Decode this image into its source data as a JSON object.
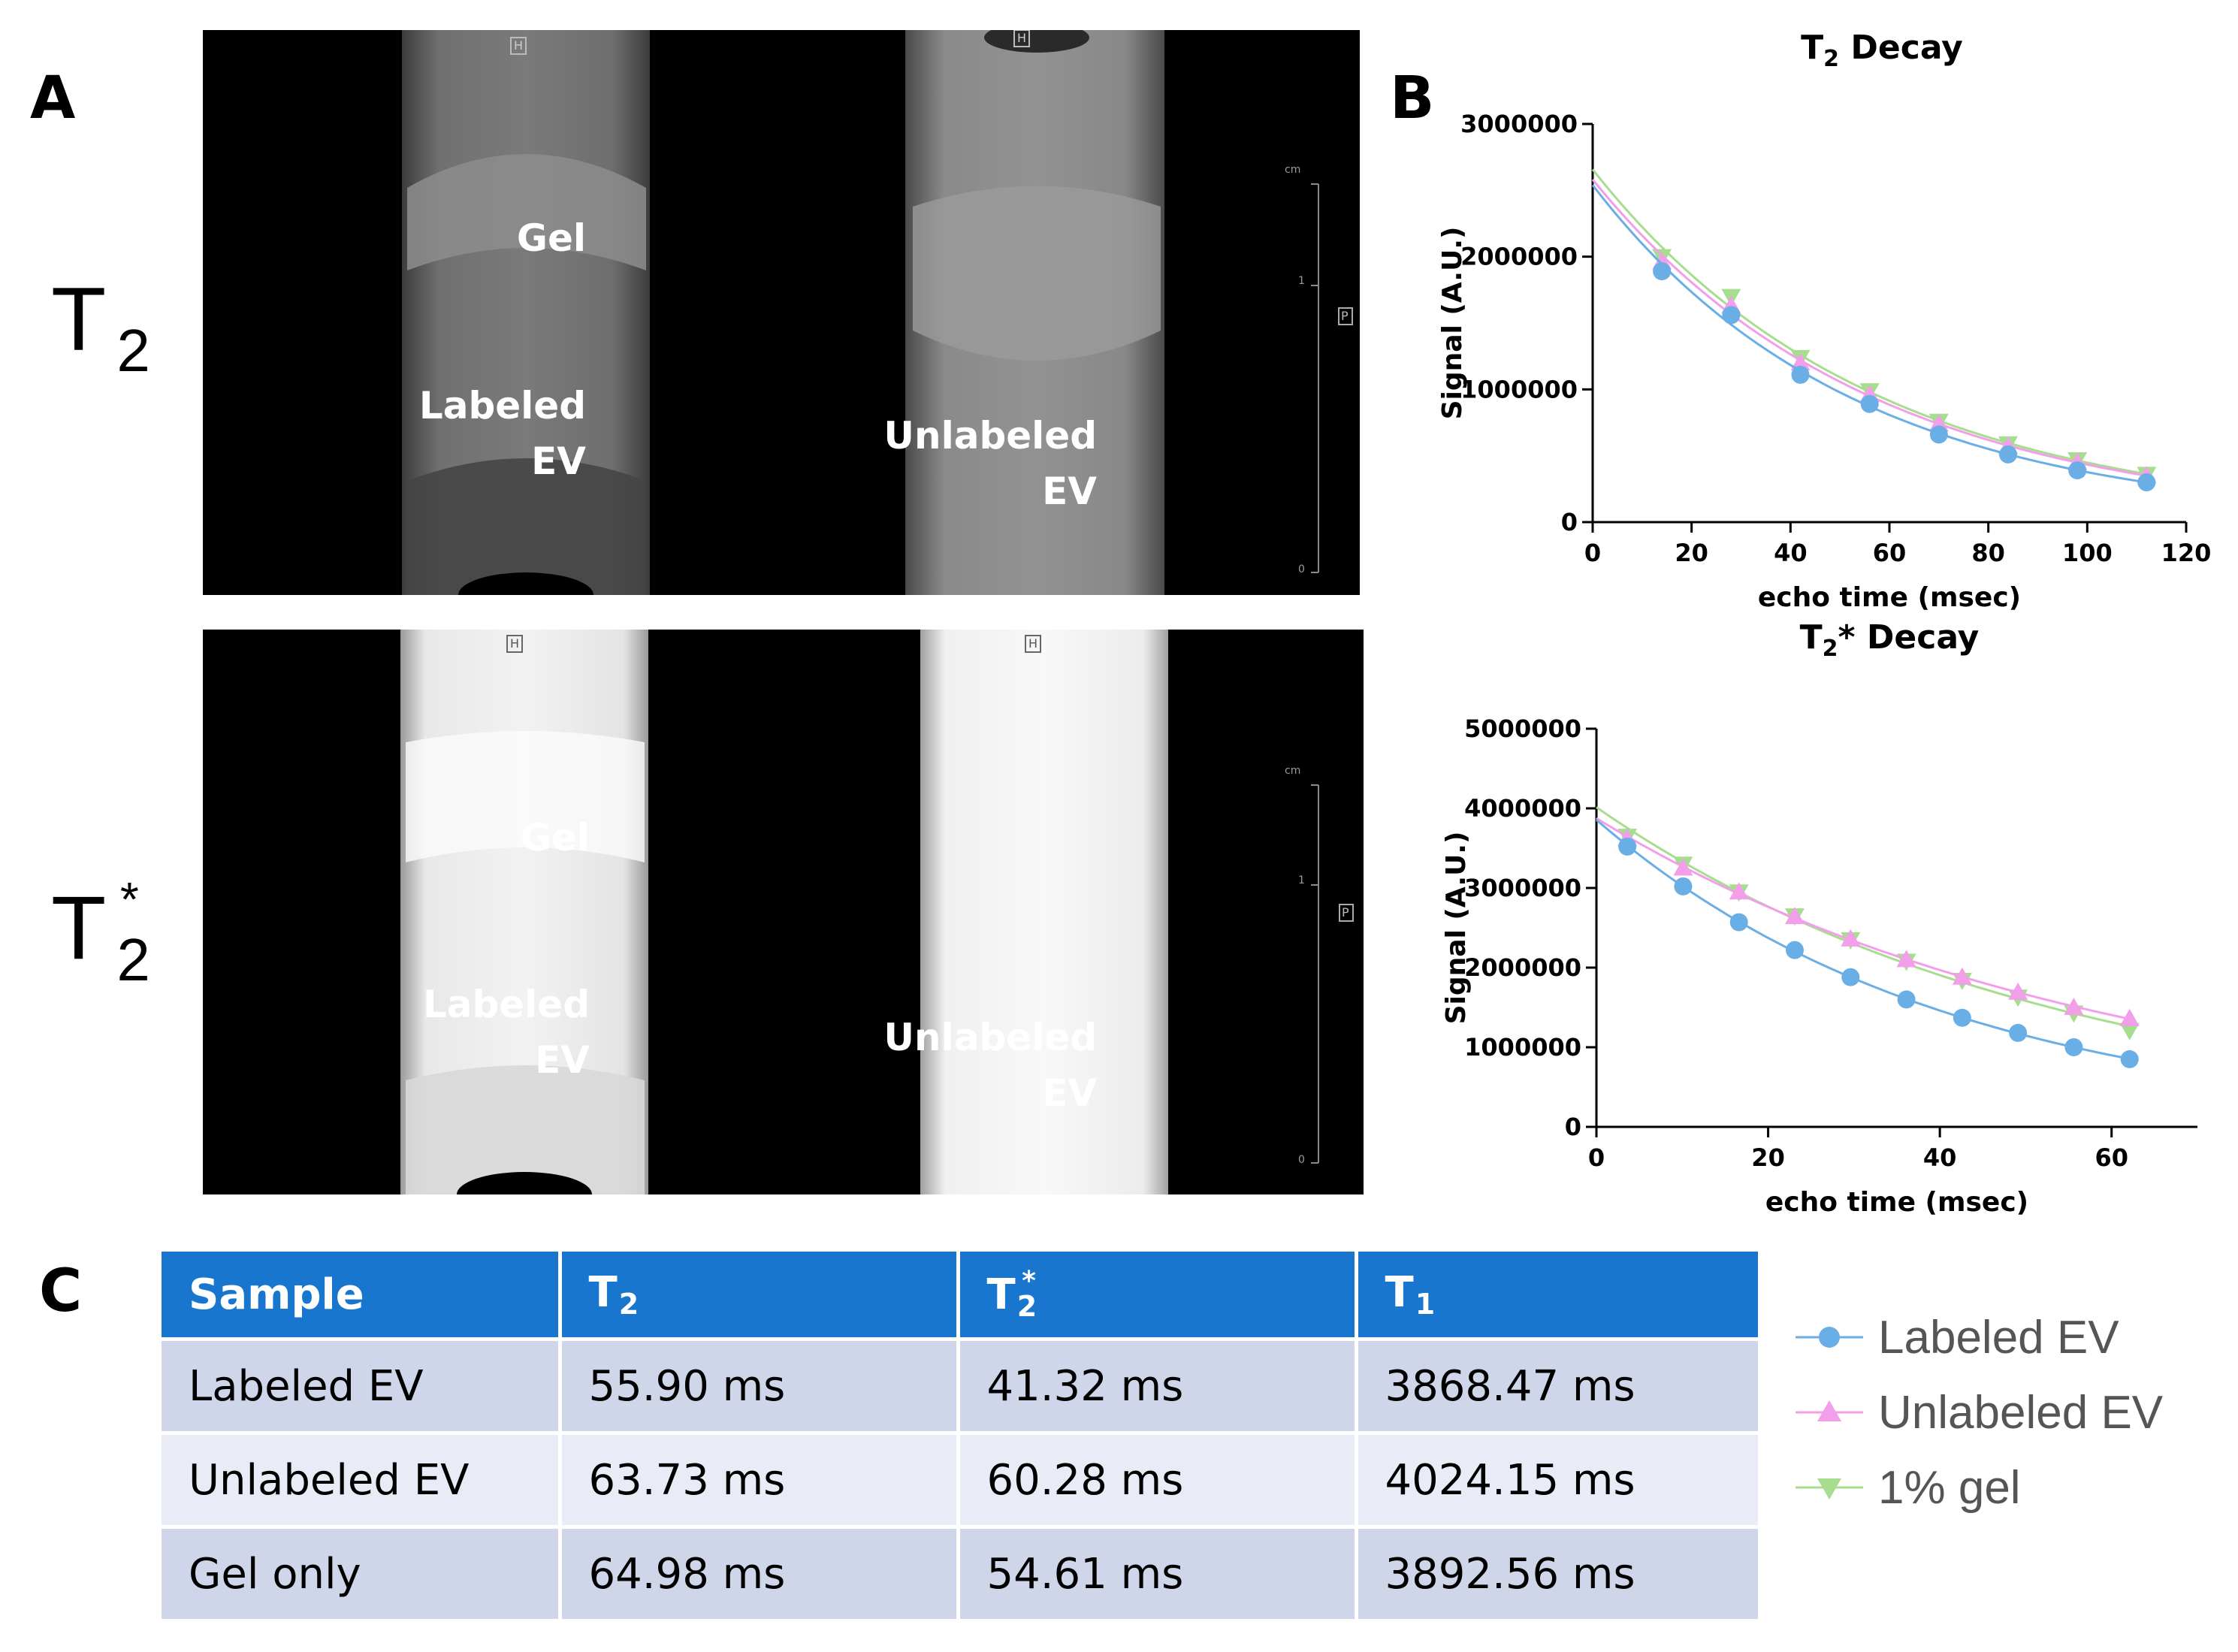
{
  "panels": {
    "a": "A",
    "b": "B",
    "c": "C"
  },
  "row_labels": {
    "t2": {
      "base": "T",
      "sub": "2",
      "sup": ""
    },
    "t2star": {
      "base": "T",
      "sub": "2",
      "sup": "*"
    }
  },
  "mri": {
    "labels": {
      "gel": "Gel",
      "labeled_ev": "Labeled\nEV",
      "unlabeled_ev": "Unlabeled\nEV"
    },
    "scale_unit": "cm",
    "scale_ticks": [
      "1",
      "0"
    ],
    "orientation_marker": "P",
    "top_marker": "H"
  },
  "chart_data": [
    {
      "type": "line",
      "title_base": "T",
      "title_sub": "2",
      "title_rest": " Decay",
      "xlabel": "echo time (msec)",
      "ylabel": "Signal (A.U.)",
      "xlim": [
        0,
        120
      ],
      "ylim": [
        0,
        3000000
      ],
      "xticks": [
        0,
        20,
        40,
        60,
        80,
        100,
        120
      ],
      "yticks": [
        0,
        1000000,
        2000000,
        3000000
      ],
      "x": [
        14,
        28,
        42,
        56,
        70,
        84,
        98,
        112
      ],
      "series": [
        {
          "name": "1% gel",
          "color": "#a7dd8f",
          "marker": "triangle-down",
          "values": [
            2000000,
            1700000,
            1240000,
            990000,
            760000,
            590000,
            470000,
            360000
          ]
        },
        {
          "name": "Unlabeled EV",
          "color": "#f29ee8",
          "marker": "triangle-up",
          "values": [
            1960000,
            1630000,
            1200000,
            960000,
            740000,
            570000,
            450000,
            350000
          ]
        },
        {
          "name": "Labeled EV",
          "color": "#6aaee6",
          "marker": "circle",
          "values": [
            1890000,
            1560000,
            1110000,
            890000,
            660000,
            510000,
            390000,
            300000
          ]
        }
      ]
    },
    {
      "type": "line",
      "title_base": "T",
      "title_sub": "2",
      "title_rest": "* Decay",
      "xlabel": "echo time (msec)",
      "ylabel": "Signal (A.U.)",
      "xlim": [
        0,
        70
      ],
      "ylim": [
        0,
        5000000
      ],
      "xticks": [
        0,
        20,
        40,
        60
      ],
      "yticks": [
        0,
        1000000,
        2000000,
        3000000,
        4000000,
        5000000
      ],
      "x": [
        3.6,
        10.1,
        16.6,
        23.1,
        29.6,
        36.1,
        42.6,
        49.1,
        55.6,
        62.1
      ],
      "series": [
        {
          "name": "1% gel",
          "color": "#a7dd8f",
          "marker": "triangle-down",
          "values": [
            3650000,
            3300000,
            2950000,
            2650000,
            2350000,
            2080000,
            1840000,
            1630000,
            1430000,
            1210000
          ]
        },
        {
          "name": "Unlabeled EV",
          "color": "#f29ee8",
          "marker": "triangle-up",
          "values": [
            3620000,
            3250000,
            2950000,
            2640000,
            2360000,
            2100000,
            1880000,
            1690000,
            1500000,
            1360000
          ]
        },
        {
          "name": "Labeled EV",
          "color": "#6aaee6",
          "marker": "circle",
          "values": [
            3520000,
            3020000,
            2570000,
            2220000,
            1880000,
            1600000,
            1370000,
            1180000,
            1000000,
            850000
          ]
        }
      ]
    }
  ],
  "table": {
    "headers": [
      {
        "base": "Sample",
        "sub": "",
        "sup": ""
      },
      {
        "base": "T",
        "sub": "2",
        "sup": ""
      },
      {
        "base": "T",
        "sub": "2",
        "sup": "*"
      },
      {
        "base": "T",
        "sub": "1",
        "sup": ""
      }
    ],
    "rows": [
      [
        "Labeled EV",
        "55.90 ms",
        "41.32 ms",
        "3868.47 ms"
      ],
      [
        "Unlabeled EV",
        "63.73 ms",
        "60.28 ms",
        "4024.15 ms"
      ],
      [
        "Gel only",
        "64.98 ms",
        "54.61 ms",
        "3892.56 ms"
      ]
    ]
  },
  "legend": [
    {
      "label": "Labeled EV",
      "color": "#6aaee6",
      "marker": "circle"
    },
    {
      "label": "Unlabeled EV",
      "color": "#f29ee8",
      "marker": "triangle-up"
    },
    {
      "label": "1% gel",
      "color": "#a7dd8f",
      "marker": "triangle-down"
    }
  ]
}
